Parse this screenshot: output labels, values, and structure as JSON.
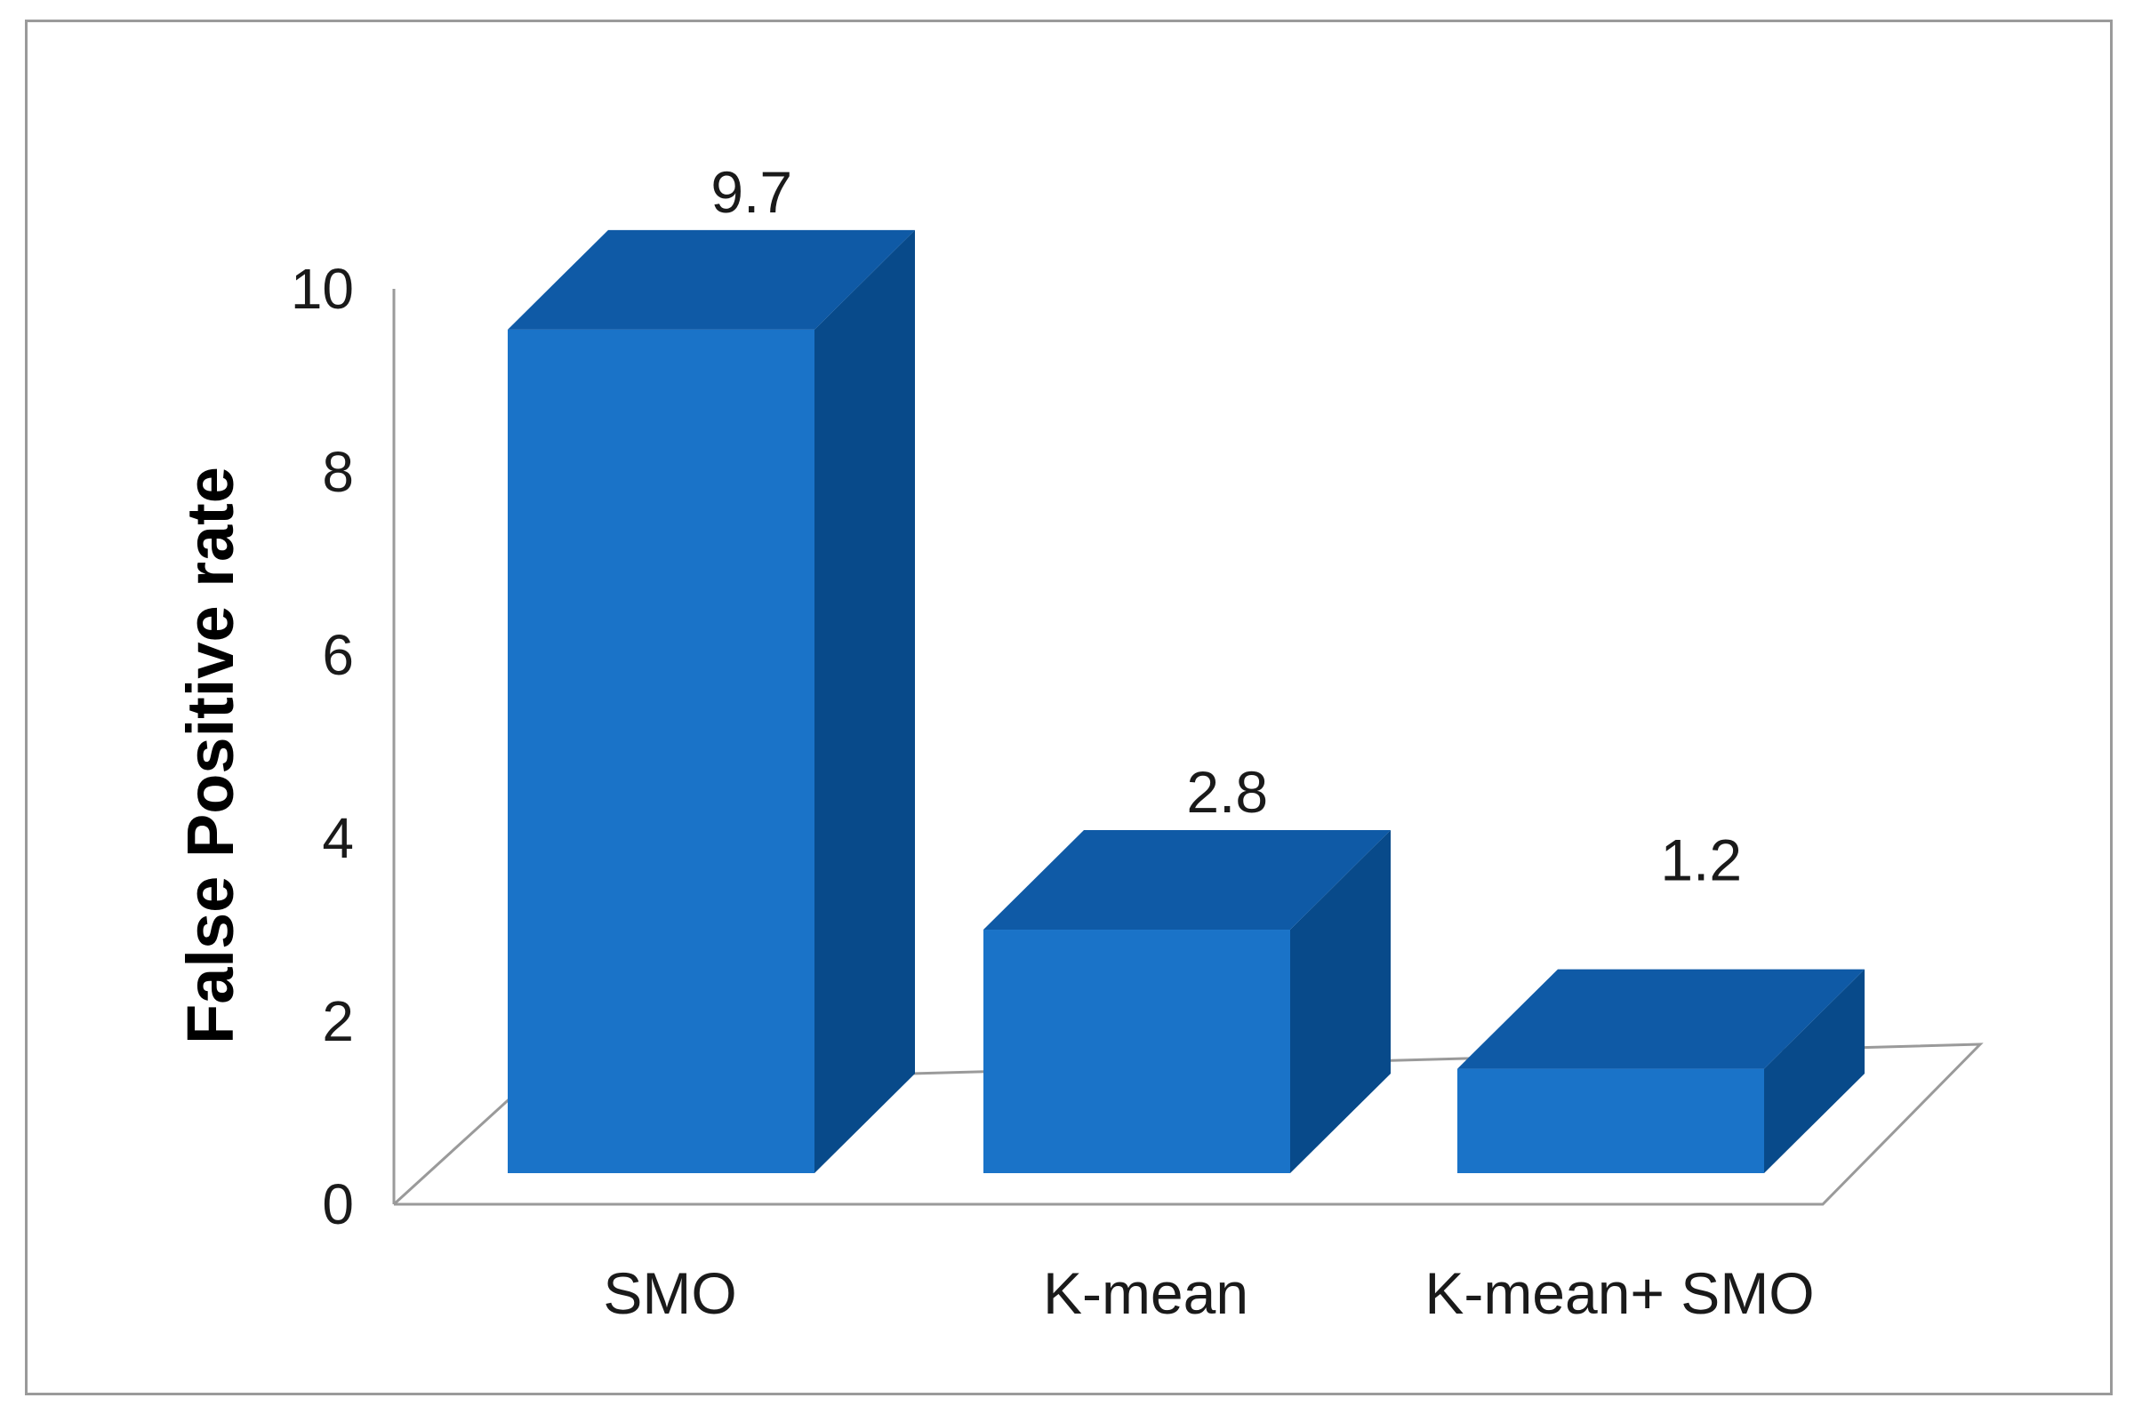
{
  "chart_data": {
    "type": "bar",
    "style": "3d-column",
    "categories": [
      "SMO",
      "K-mean",
      "K-mean+ SMO"
    ],
    "values": [
      9.7,
      2.8,
      1.2
    ],
    "data_labels": [
      "9.7",
      "2.8",
      "1.2"
    ],
    "title": "",
    "xlabel": "",
    "ylabel": "False Positive rate",
    "ylim": [
      0,
      10
    ],
    "yticks": [
      "0",
      "2",
      "4",
      "6",
      "8",
      "10"
    ],
    "grid": false,
    "legend": "none"
  },
  "colors": {
    "bar_front": "#1a73c8",
    "bar_top": "#0f5aa6",
    "bar_side": "#084a8a",
    "axis": "#9a9a9a"
  }
}
